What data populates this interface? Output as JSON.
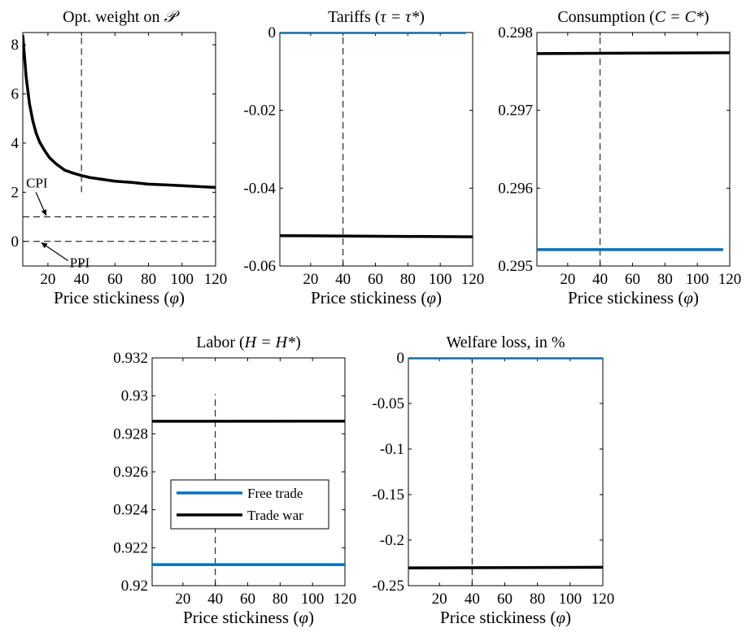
{
  "colors": {
    "free_trade": "#0072BD",
    "trade_war": "#000000"
  },
  "chart_data": [
    {
      "type": "line",
      "title_text": "Opt. weight on ",
      "title_math": "𝒫",
      "xlabel_text": "Price stickiness (",
      "xlabel_math": "φ",
      "xlabel_close": ")",
      "xlim": [
        5,
        120
      ],
      "ylim": [
        -1,
        8.5
      ],
      "xticks": [
        20,
        40,
        60,
        80,
        100,
        120
      ],
      "yticks": [
        0,
        2,
        4,
        6,
        8
      ],
      "vline": {
        "x": 40,
        "y_from": 2.0,
        "y_to": 8.5
      },
      "hlines": [
        {
          "y": 1,
          "style": "dashed"
        },
        {
          "y": 0,
          "style": "dashed"
        }
      ],
      "annotations": [
        {
          "text": "CPI",
          "x": 7,
          "y": 2.2,
          "arrow_to": [
            19,
            1.05
          ]
        },
        {
          "text": "PPI",
          "x": 33,
          "y": -1.05,
          "arrow_to": [
            16,
            -0.05
          ]
        }
      ],
      "series": [
        {
          "color": "trade_war",
          "x": [
            5,
            7,
            9,
            11,
            13,
            15,
            18,
            21,
            25,
            30,
            35,
            40,
            45,
            50,
            55,
            60,
            70,
            80,
            90,
            100,
            110,
            120
          ],
          "y": [
            8.4,
            6.7,
            5.6,
            4.9,
            4.4,
            4.05,
            3.7,
            3.4,
            3.15,
            2.9,
            2.78,
            2.68,
            2.6,
            2.55,
            2.5,
            2.45,
            2.4,
            2.33,
            2.3,
            2.27,
            2.23,
            2.2
          ]
        }
      ]
    },
    {
      "type": "line",
      "title_text": "Tariffs (",
      "title_math": "τ = τ*",
      "title_close": ")",
      "xlabel_text": "Price stickiness (",
      "xlabel_math": "φ",
      "xlabel_close": ")",
      "xlim": [
        1,
        120
      ],
      "ylim": [
        -0.06,
        0
      ],
      "xticks": [
        20,
        40,
        60,
        80,
        100,
        120
      ],
      "yticks": [
        0,
        -0.02,
        -0.04,
        -0.06
      ],
      "ytick_labels": [
        "0",
        "-0.02",
        "-0.04",
        "-0.06"
      ],
      "vline": {
        "x": 40,
        "y_from": -0.06,
        "y_to": 0
      },
      "series": [
        {
          "color": "free_trade",
          "x": [
            1,
            116
          ],
          "y": [
            0,
            0
          ]
        },
        {
          "color": "trade_war",
          "x": [
            1,
            120
          ],
          "y": [
            -0.0522,
            -0.0525
          ]
        }
      ]
    },
    {
      "type": "line",
      "title_text": "Consumption (",
      "title_math": "C = C*",
      "title_close": ")",
      "xlabel_text": "Price stickiness (",
      "xlabel_math": "φ",
      "xlabel_close": ")",
      "xlim": [
        1,
        120
      ],
      "ylim": [
        0.295,
        0.298
      ],
      "xticks": [
        20,
        40,
        60,
        80,
        100,
        120
      ],
      "yticks": [
        0.295,
        0.296,
        0.297,
        0.298
      ],
      "ytick_labels": [
        "0.295",
        "0.296",
        "0.297",
        "0.298"
      ],
      "vline": {
        "x": 40,
        "y_from": 0.295,
        "y_to": 0.298
      },
      "series": [
        {
          "color": "free_trade",
          "x": [
            1,
            116
          ],
          "y": [
            0.29521,
            0.29521
          ]
        },
        {
          "color": "trade_war",
          "x": [
            1,
            120
          ],
          "y": [
            0.29773,
            0.29774
          ]
        }
      ]
    },
    {
      "type": "line",
      "title_text": "Labor (",
      "title_math": "H = H*",
      "title_close": ")",
      "xlabel_text": "Price stickiness (",
      "xlabel_math": "φ",
      "xlabel_close": ")",
      "xlim": [
        1,
        120
      ],
      "ylim": [
        0.92,
        0.932
      ],
      "xticks": [
        20,
        40,
        60,
        80,
        100,
        120
      ],
      "yticks": [
        0.92,
        0.922,
        0.924,
        0.926,
        0.928,
        0.93,
        0.932
      ],
      "ytick_labels": [
        "0.92",
        "0.922",
        "0.924",
        "0.926",
        "0.928",
        "0.93",
        "0.932"
      ],
      "vline": {
        "x": 40,
        "y_from": 0.92,
        "y_to": 0.9301
      },
      "legend": {
        "placement": "lower-left",
        "entries": [
          {
            "label": "Free trade",
            "color": "free_trade"
          },
          {
            "label": "Trade war",
            "color": "trade_war"
          }
        ]
      },
      "series": [
        {
          "color": "free_trade",
          "x": [
            1,
            120
          ],
          "y": [
            0.92111,
            0.92111
          ]
        },
        {
          "color": "trade_war",
          "x": [
            1,
            120
          ],
          "y": [
            0.92866,
            0.92867
          ]
        }
      ]
    },
    {
      "type": "line",
      "title_text": "Welfare loss, in %",
      "xlabel_text": "Price stickiness (",
      "xlabel_math": "φ",
      "xlabel_close": ")",
      "xlim": [
        1,
        120
      ],
      "ylim": [
        -0.25,
        0
      ],
      "xticks": [
        20,
        40,
        60,
        80,
        100,
        120
      ],
      "yticks": [
        0,
        -0.05,
        -0.1,
        -0.15,
        -0.2,
        -0.25
      ],
      "ytick_labels": [
        "0",
        "-0.05",
        "-0.1",
        "-0.15",
        "-0.2",
        "-0.25"
      ],
      "vline": {
        "x": 40,
        "y_from": -0.25,
        "y_to": 0
      },
      "series": [
        {
          "color": "free_trade",
          "x": [
            1,
            120
          ],
          "y": [
            0,
            0
          ]
        },
        {
          "color": "trade_war",
          "x": [
            1,
            120
          ],
          "y": [
            -0.2305,
            -0.2298
          ]
        }
      ]
    }
  ]
}
